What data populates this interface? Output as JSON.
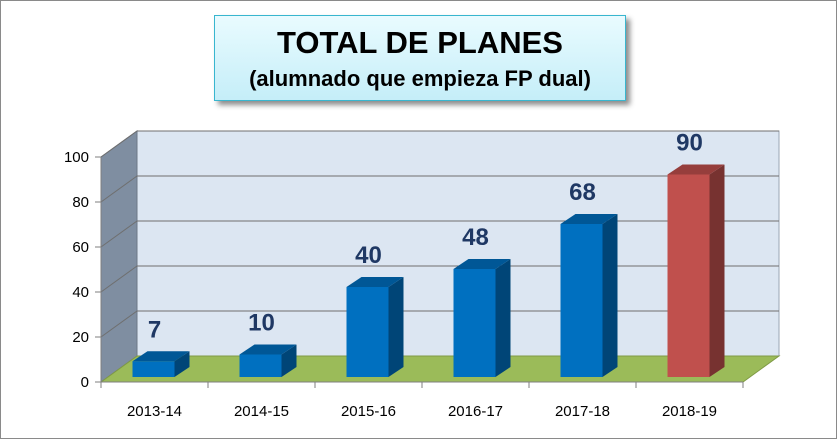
{
  "chart_data": {
    "type": "bar",
    "title": "TOTAL DE PLANES",
    "subtitle": "(alumnado que empieza FP dual)",
    "categories": [
      "2013-14",
      "2014-15",
      "2015-16",
      "2016-17",
      "2017-18",
      "2018-19"
    ],
    "values": [
      7,
      10,
      40,
      48,
      68,
      90
    ],
    "data_labels": [
      "7",
      "10",
      "40",
      "48",
      "68",
      "90"
    ],
    "ylim": [
      0,
      100
    ],
    "yticks": [
      "0",
      "20",
      "40",
      "60",
      "80",
      "100"
    ],
    "xlabel": "",
    "ylabel": "",
    "grid": true,
    "legend": "none",
    "colors": {
      "bar": "#0070c0",
      "bar_highlight": "#c0504d",
      "highlight_index": 5,
      "wall": "#dce6f2",
      "floor": "#9bbb59",
      "side_wall": "#7f8ea1",
      "data_label": "#1f3864"
    }
  }
}
